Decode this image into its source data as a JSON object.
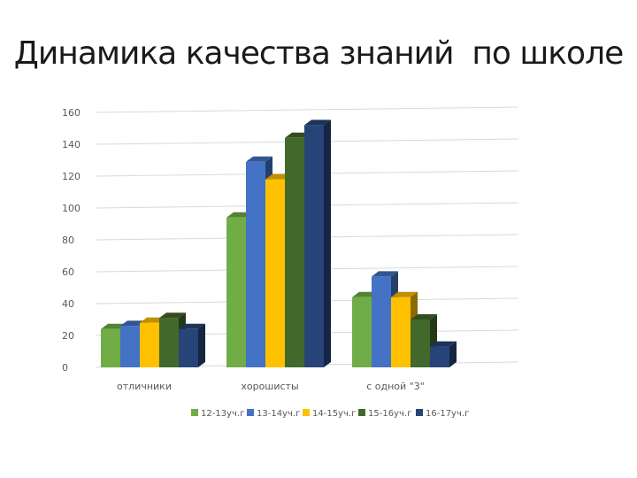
{
  "slide": {
    "title": "Динамика качества знаний  по школе"
  },
  "chart_data": {
    "type": "bar",
    "title": "Динамика качества знаний  по школе",
    "xlabel": "",
    "ylabel": "",
    "ylim": [
      0,
      160
    ],
    "yticks": [
      0,
      20,
      40,
      60,
      80,
      100,
      120,
      140,
      160
    ],
    "grid": true,
    "legend_position": "bottom",
    "categories": [
      "отличники",
      "хорошисты",
      "с одной \"3\""
    ],
    "series": [
      {
        "name": "12-13уч.г",
        "color": "#70ad47",
        "values": [
          24,
          94,
          44
        ]
      },
      {
        "name": "13-14уч.г",
        "color": "#4472c4",
        "values": [
          26,
          129,
          57
        ]
      },
      {
        "name": "14-15уч.г",
        "color": "#ffc000",
        "values": [
          28,
          118,
          44
        ]
      },
      {
        "name": "15-16уч.г",
        "color": "#43682b",
        "values": [
          31,
          144,
          30
        ]
      },
      {
        "name": "16-17уч.г",
        "color": "#264478",
        "values": [
          24,
          152,
          13
        ]
      }
    ]
  }
}
